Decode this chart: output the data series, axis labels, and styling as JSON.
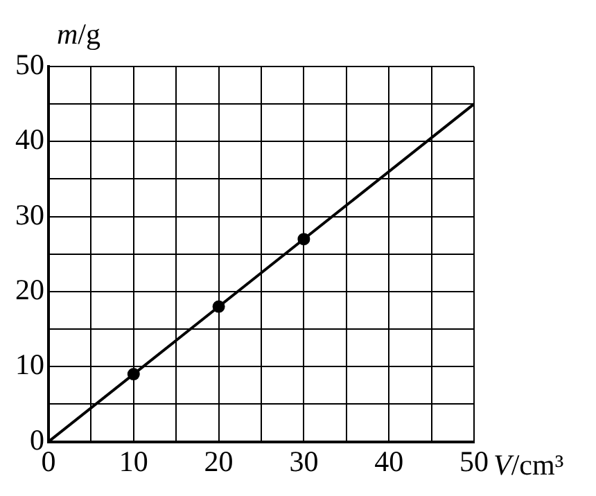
{
  "chart_data": {
    "type": "line",
    "xlabel": "V/cm³",
    "ylabel": "m/g",
    "xlim": [
      0,
      50
    ],
    "ylim": [
      0,
      50
    ],
    "xticks": [
      0,
      {
        "value": 5,
        "label": null
      },
      10,
      {
        "value": 15,
        "label": null
      },
      20,
      {
        "value": 25,
        "label": null
      },
      30,
      {
        "value": 35,
        "label": null
      },
      40,
      {
        "value": 45,
        "label": null
      },
      50
    ],
    "yticks": [
      0,
      {
        "value": 5,
        "label": null
      },
      10,
      {
        "value": 15,
        "label": null
      },
      20,
      {
        "value": 25,
        "label": null
      },
      30,
      {
        "value": 35,
        "label": null
      },
      40,
      {
        "value": 45,
        "label": null
      },
      50
    ],
    "grid": true,
    "legend": false,
    "series": [
      {
        "color": "#000000",
        "x": [
          0,
          50
        ],
        "values": [
          0,
          45
        ],
        "marker": "none"
      },
      {
        "type": "scatter",
        "color": "#000000",
        "x": [
          10,
          20,
          30
        ],
        "values": [
          9,
          18,
          27
        ],
        "marker": "circle"
      }
    ]
  }
}
